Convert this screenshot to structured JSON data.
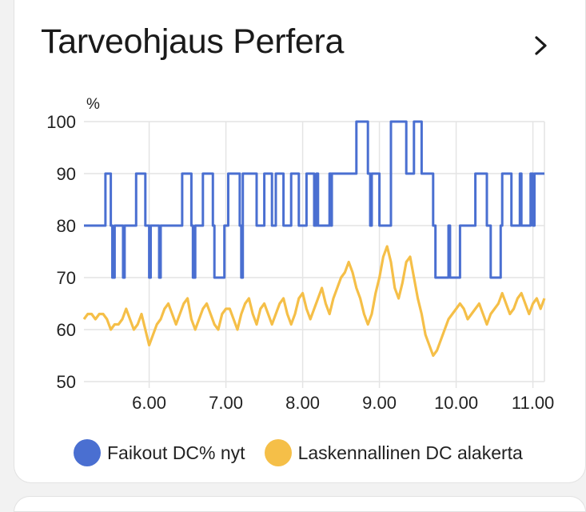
{
  "card": {
    "title": "Tarveohjaus Perfera",
    "nav_icon": "chevron-right-icon"
  },
  "colors": {
    "blue": "#4a6fd1",
    "yellow": "#f5bf48",
    "grid": "#e4e4e4",
    "text": "#222222"
  },
  "chart_data": {
    "type": "line",
    "title": "",
    "ylabel": "%",
    "xlabel": "",
    "ylim": [
      50,
      100
    ],
    "xlim": [
      5.15,
      11.15
    ],
    "y_ticks": [
      {
        "v": 100,
        "l": "100"
      },
      {
        "v": 90,
        "l": "90"
      },
      {
        "v": 80,
        "l": "80"
      },
      {
        "v": 70,
        "l": "70"
      },
      {
        "v": 60,
        "l": "60"
      },
      {
        "v": 50,
        "l": "50"
      }
    ],
    "x_ticks": [
      {
        "v": 6,
        "l": "6.00"
      },
      {
        "v": 7,
        "l": "7.00"
      },
      {
        "v": 8,
        "l": "8.00"
      },
      {
        "v": 9,
        "l": "9.00"
      },
      {
        "v": 10,
        "l": "10.00"
      },
      {
        "v": 11,
        "l": "11.00"
      }
    ],
    "grid": true,
    "legend_position": "bottom",
    "series": [
      {
        "name": "Faikout DC% nyt",
        "color": "#4a6fd1",
        "style": "step",
        "x": [
          5.15,
          5.43,
          5.5,
          5.52,
          5.55,
          5.66,
          5.68,
          5.83,
          5.95,
          6.0,
          6.02,
          6.13,
          6.15,
          6.43,
          6.55,
          6.57,
          6.6,
          6.7,
          6.83,
          6.85,
          6.98,
          7.03,
          7.18,
          7.2,
          7.22,
          7.4,
          7.5,
          7.6,
          7.65,
          7.75,
          7.85,
          7.95,
          8.05,
          8.15,
          8.18,
          8.2,
          8.35,
          8.37,
          8.38,
          8.7,
          8.85,
          8.88,
          8.9,
          9.0,
          9.15,
          9.35,
          9.45,
          9.55,
          9.7,
          9.73,
          9.9,
          9.92,
          10.05,
          10.25,
          10.4,
          10.45,
          10.58,
          10.6,
          10.72,
          10.83,
          10.85,
          10.97,
          11.0,
          11.02,
          11.15
        ],
        "y": [
          80,
          90,
          80,
          70,
          80,
          70,
          80,
          90,
          80,
          70,
          80,
          70,
          80,
          90,
          80,
          70,
          80,
          90,
          80,
          70,
          80,
          90,
          80,
          70,
          90,
          80,
          90,
          80,
          90,
          80,
          90,
          80,
          90,
          80,
          90,
          80,
          90,
          80,
          90,
          100,
          90,
          80,
          90,
          80,
          100,
          90,
          100,
          90,
          80,
          70,
          80,
          70,
          80,
          90,
          80,
          70,
          80,
          90,
          80,
          90,
          80,
          90,
          80,
          90,
          90
        ]
      },
      {
        "name": "Laskennallinen DC alakerta",
        "color": "#f5bf48",
        "style": "line",
        "x": [
          5.15,
          5.2,
          5.25,
          5.3,
          5.35,
          5.4,
          5.45,
          5.5,
          5.55,
          5.6,
          5.65,
          5.7,
          5.75,
          5.8,
          5.85,
          5.9,
          5.95,
          6.0,
          6.05,
          6.1,
          6.15,
          6.2,
          6.25,
          6.3,
          6.35,
          6.4,
          6.45,
          6.5,
          6.55,
          6.6,
          6.65,
          6.7,
          6.75,
          6.8,
          6.85,
          6.9,
          6.95,
          7.0,
          7.05,
          7.1,
          7.15,
          7.2,
          7.25,
          7.3,
          7.35,
          7.4,
          7.45,
          7.5,
          7.55,
          7.6,
          7.65,
          7.7,
          7.75,
          7.8,
          7.85,
          7.9,
          7.95,
          8.0,
          8.05,
          8.1,
          8.15,
          8.2,
          8.25,
          8.3,
          8.35,
          8.4,
          8.45,
          8.5,
          8.55,
          8.6,
          8.65,
          8.7,
          8.75,
          8.8,
          8.85,
          8.9,
          8.95,
          9.0,
          9.05,
          9.1,
          9.15,
          9.2,
          9.25,
          9.3,
          9.35,
          9.4,
          9.45,
          9.5,
          9.55,
          9.6,
          9.65,
          9.7,
          9.75,
          9.8,
          9.85,
          9.9,
          9.95,
          10.0,
          10.05,
          10.1,
          10.15,
          10.2,
          10.25,
          10.3,
          10.35,
          10.4,
          10.45,
          10.5,
          10.55,
          10.6,
          10.65,
          10.7,
          10.75,
          10.8,
          10.85,
          10.9,
          10.95,
          11.0,
          11.05,
          11.1,
          11.15
        ],
        "y": [
          62,
          63,
          63,
          62,
          63,
          63,
          62,
          60,
          61,
          61,
          62,
          64,
          62,
          60,
          61,
          63,
          60,
          57,
          59,
          61,
          62,
          64,
          65,
          63,
          61,
          63,
          65,
          66,
          62,
          60,
          62,
          64,
          65,
          63,
          61,
          60,
          63,
          64,
          64,
          62,
          60,
          63,
          65,
          66,
          63,
          61,
          64,
          65,
          63,
          61,
          63,
          65,
          66,
          63,
          61,
          63,
          66,
          67,
          64,
          62,
          64,
          66,
          68,
          65,
          63,
          66,
          68,
          70,
          71,
          73,
          71,
          68,
          66,
          63,
          61,
          63,
          67,
          70,
          74,
          76,
          73,
          68,
          66,
          69,
          73,
          74,
          70,
          66,
          63,
          59,
          57,
          55,
          56,
          58,
          60,
          62,
          63,
          64,
          65,
          64,
          62,
          63,
          64,
          65,
          63,
          61,
          63,
          64,
          65,
          67,
          65,
          63,
          64,
          66,
          67,
          65,
          63,
          65,
          66,
          64,
          66
        ]
      }
    ]
  }
}
